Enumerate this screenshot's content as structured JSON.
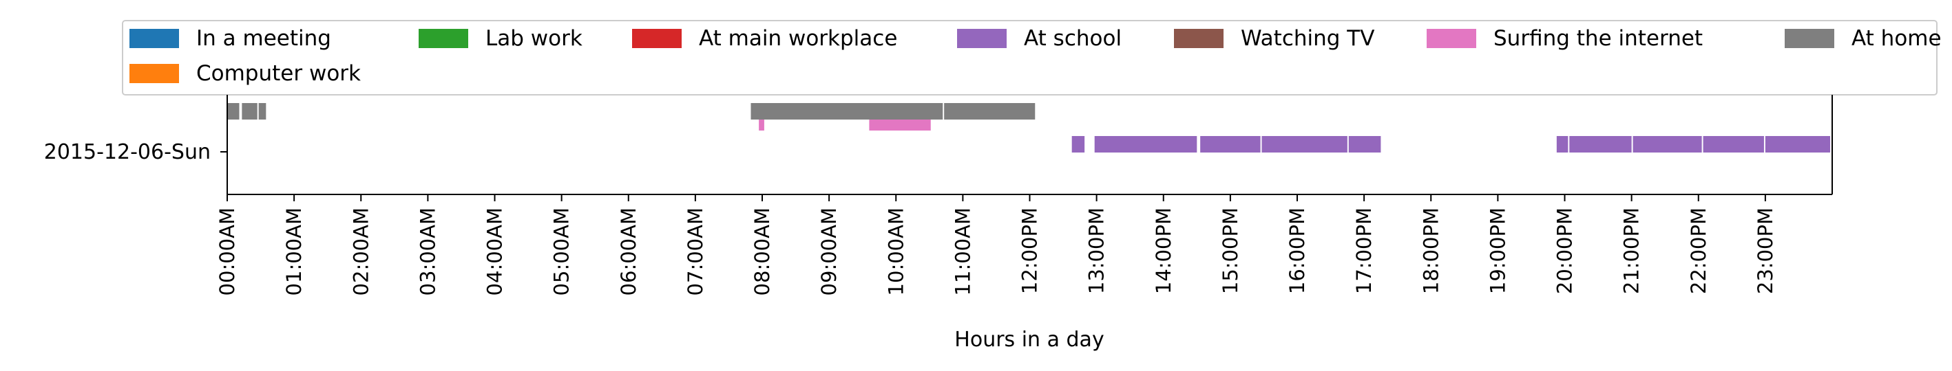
{
  "chart_data": {
    "type": "timeline",
    "xlabel": "Hours in a day",
    "ylabel": "",
    "xlim": [
      0,
      24
    ],
    "categories": [
      "2015-12-06-Sun"
    ],
    "x_ticks": [
      "00:00AM",
      "01:00AM",
      "02:00AM",
      "03:00AM",
      "04:00AM",
      "05:00AM",
      "06:00AM",
      "07:00AM",
      "08:00AM",
      "09:00AM",
      "10:00AM",
      "11:00AM",
      "12:00PM",
      "13:00PM",
      "14:00PM",
      "15:00PM",
      "16:00PM",
      "17:00PM",
      "18:00PM",
      "19:00PM",
      "20:00PM",
      "21:00PM",
      "22:00PM",
      "23:00PM"
    ],
    "legend_placement": "top (above plot, 7 columns)",
    "series": [
      {
        "name": "In a meeting",
        "color": "#1f77b4",
        "intervals": []
      },
      {
        "name": "Lab work",
        "color": "#2ca02c",
        "intervals": []
      },
      {
        "name": "At main workplace",
        "color": "#d62728",
        "intervals": []
      },
      {
        "name": "At school",
        "color": "#9467bd",
        "intervals": [
          [
            12.63,
            12.82
          ],
          [
            12.97,
            14.5
          ],
          [
            14.55,
            15.45
          ],
          [
            15.47,
            16.75
          ],
          [
            16.77,
            17.25
          ],
          [
            19.88,
            20.05
          ],
          [
            20.07,
            21.0
          ],
          [
            21.02,
            22.05
          ],
          [
            22.07,
            22.98
          ],
          [
            23.0,
            23.97
          ]
        ]
      },
      {
        "name": "Watching TV",
        "color": "#8c564b",
        "intervals": []
      },
      {
        "name": "Surfing the internet",
        "color": "#e377c2",
        "intervals": [
          [
            7.95,
            8.03
          ],
          [
            9.6,
            10.52
          ]
        ]
      },
      {
        "name": "At home",
        "color": "#7f7f7f",
        "intervals": [
          [
            0.0,
            0.18
          ],
          [
            0.22,
            0.45
          ],
          [
            0.47,
            0.58
          ],
          [
            7.83,
            10.7
          ],
          [
            10.72,
            12.08
          ]
        ]
      },
      {
        "name": "Computer work",
        "color": "#ff7f0e",
        "intervals": []
      }
    ]
  }
}
